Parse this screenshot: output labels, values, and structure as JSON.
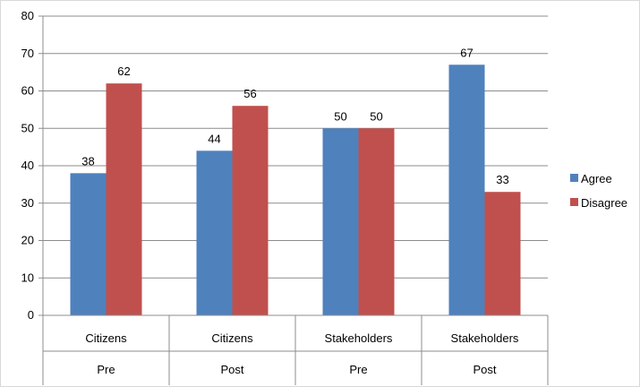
{
  "chart_data": {
    "type": "bar",
    "categories": [
      {
        "group": "Citizens",
        "phase": "Pre"
      },
      {
        "group": "Citizens",
        "phase": "Post"
      },
      {
        "group": "Stakeholders",
        "phase": "Pre"
      },
      {
        "group": "Stakeholders",
        "phase": "Post"
      }
    ],
    "series": [
      {
        "name": "Agree",
        "color": "#4f81bd",
        "values": [
          38,
          44,
          50,
          67
        ],
        "labels": [
          "38",
          "44",
          "50",
          "67"
        ]
      },
      {
        "name": "Disagree",
        "color": "#c0504d",
        "values": [
          62,
          56,
          50,
          33
        ],
        "labels": [
          "62",
          "56",
          "50",
          "33"
        ]
      }
    ],
    "ylim": [
      0,
      80
    ],
    "yticks": [
      0,
      10,
      20,
      30,
      40,
      50,
      60,
      70,
      80
    ],
    "ytick_labels": [
      "0",
      "10",
      "20",
      "30",
      "40",
      "50",
      "60",
      "70",
      "80"
    ],
    "grid": true,
    "legend_position": "right",
    "title": "",
    "xlabel": "",
    "ylabel": ""
  }
}
